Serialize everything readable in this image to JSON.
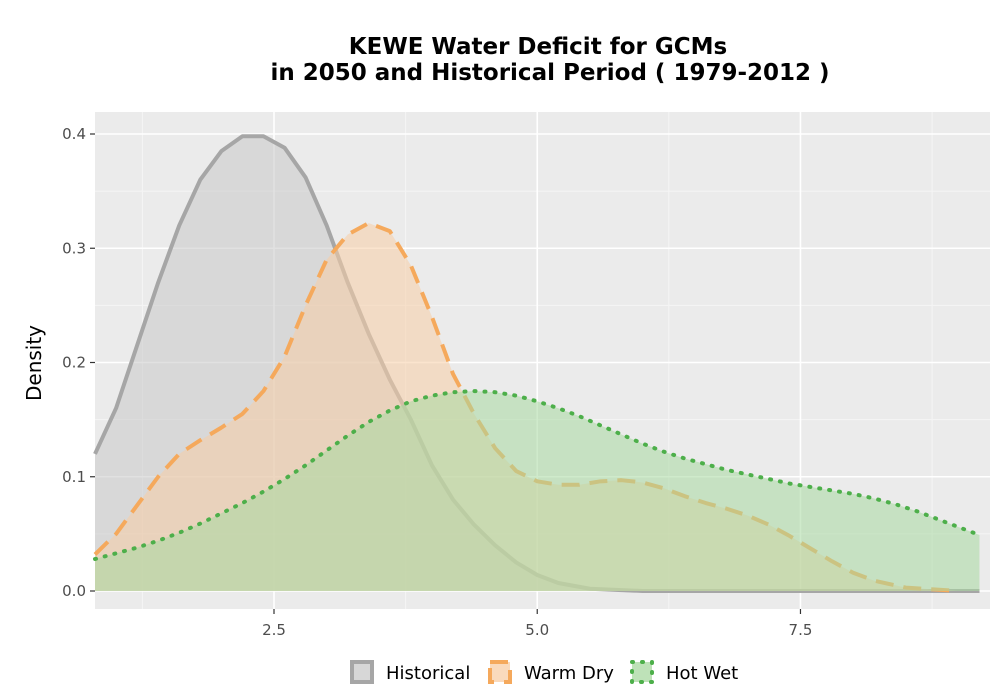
{
  "chart_data": {
    "type": "area",
    "title_lines": [
      "KEWE  Water Deficit for GCMs",
      "in 2050 and Historical Period ( 1979-2012 )"
    ],
    "xlabel": "",
    "ylabel": "Density",
    "xlim": [
      0.8,
      9.3
    ],
    "ylim": [
      0,
      0.4
    ],
    "x_ticks": [
      2.5,
      5.0,
      7.5
    ],
    "x_tick_labels": [
      "2.5",
      "5.0",
      "7.5"
    ],
    "y_ticks": [
      0.0,
      0.1,
      0.2,
      0.3,
      0.4
    ],
    "y_tick_labels": [
      "0.0",
      "0.1",
      "0.2",
      "0.3",
      "0.4"
    ],
    "grid": true,
    "legend_position": "bottom",
    "series": [
      {
        "name": "Historical",
        "line_color": "#a6a6a6",
        "fill_color": "#c9c9c9",
        "dash": "solid",
        "points": [
          [
            0.8,
            0.12
          ],
          [
            1.0,
            0.16
          ],
          [
            1.2,
            0.215
          ],
          [
            1.4,
            0.27
          ],
          [
            1.6,
            0.32
          ],
          [
            1.8,
            0.36
          ],
          [
            2.0,
            0.385
          ],
          [
            2.2,
            0.398
          ],
          [
            2.4,
            0.398
          ],
          [
            2.6,
            0.388
          ],
          [
            2.8,
            0.362
          ],
          [
            3.0,
            0.32
          ],
          [
            3.2,
            0.27
          ],
          [
            3.4,
            0.225
          ],
          [
            3.6,
            0.185
          ],
          [
            3.8,
            0.15
          ],
          [
            4.0,
            0.11
          ],
          [
            4.2,
            0.08
          ],
          [
            4.4,
            0.058
          ],
          [
            4.6,
            0.04
          ],
          [
            4.8,
            0.025
          ],
          [
            5.0,
            0.014
          ],
          [
            5.2,
            0.007
          ],
          [
            5.5,
            0.002
          ],
          [
            6.0,
            0.0
          ],
          [
            9.2,
            0.0
          ]
        ]
      },
      {
        "name": "Warm Dry",
        "line_color": "#f5a95c",
        "fill_color": "#f8cda5",
        "dash": "dashed",
        "points": [
          [
            0.8,
            0.032
          ],
          [
            1.0,
            0.05
          ],
          [
            1.2,
            0.075
          ],
          [
            1.4,
            0.1
          ],
          [
            1.6,
            0.12
          ],
          [
            1.8,
            0.132
          ],
          [
            2.0,
            0.143
          ],
          [
            2.2,
            0.155
          ],
          [
            2.4,
            0.175
          ],
          [
            2.6,
            0.205
          ],
          [
            2.8,
            0.25
          ],
          [
            3.0,
            0.29
          ],
          [
            3.2,
            0.312
          ],
          [
            3.4,
            0.322
          ],
          [
            3.6,
            0.315
          ],
          [
            3.8,
            0.285
          ],
          [
            4.0,
            0.24
          ],
          [
            4.2,
            0.19
          ],
          [
            4.4,
            0.155
          ],
          [
            4.6,
            0.125
          ],
          [
            4.8,
            0.105
          ],
          [
            5.0,
            0.096
          ],
          [
            5.2,
            0.093
          ],
          [
            5.4,
            0.093
          ],
          [
            5.6,
            0.096
          ],
          [
            5.8,
            0.097
          ],
          [
            6.0,
            0.095
          ],
          [
            6.2,
            0.09
          ],
          [
            6.4,
            0.083
          ],
          [
            6.6,
            0.077
          ],
          [
            6.8,
            0.072
          ],
          [
            7.0,
            0.066
          ],
          [
            7.2,
            0.058
          ],
          [
            7.4,
            0.048
          ],
          [
            7.6,
            0.037
          ],
          [
            7.8,
            0.026
          ],
          [
            8.0,
            0.016
          ],
          [
            8.2,
            0.009
          ],
          [
            8.5,
            0.003
          ],
          [
            9.0,
            0.0
          ]
        ]
      },
      {
        "name": "Hot Wet",
        "line_color": "#4daf4a",
        "fill_color": "#a8d8a0",
        "dash": "dotted",
        "points": [
          [
            0.8,
            0.028
          ],
          [
            1.0,
            0.033
          ],
          [
            1.2,
            0.038
          ],
          [
            1.4,
            0.044
          ],
          [
            1.6,
            0.051
          ],
          [
            1.8,
            0.059
          ],
          [
            2.0,
            0.068
          ],
          [
            2.2,
            0.077
          ],
          [
            2.4,
            0.087
          ],
          [
            2.6,
            0.098
          ],
          [
            2.8,
            0.11
          ],
          [
            3.0,
            0.123
          ],
          [
            3.2,
            0.136
          ],
          [
            3.4,
            0.148
          ],
          [
            3.6,
            0.158
          ],
          [
            3.8,
            0.166
          ],
          [
            4.0,
            0.171
          ],
          [
            4.2,
            0.174
          ],
          [
            4.4,
            0.175
          ],
          [
            4.6,
            0.174
          ],
          [
            4.8,
            0.171
          ],
          [
            5.0,
            0.166
          ],
          [
            5.2,
            0.16
          ],
          [
            5.4,
            0.153
          ],
          [
            5.6,
            0.145
          ],
          [
            5.8,
            0.137
          ],
          [
            6.0,
            0.129
          ],
          [
            6.2,
            0.122
          ],
          [
            6.4,
            0.116
          ],
          [
            6.6,
            0.111
          ],
          [
            6.8,
            0.106
          ],
          [
            7.0,
            0.102
          ],
          [
            7.2,
            0.098
          ],
          [
            7.4,
            0.094
          ],
          [
            7.6,
            0.091
          ],
          [
            7.8,
            0.088
          ],
          [
            8.0,
            0.085
          ],
          [
            8.2,
            0.081
          ],
          [
            8.4,
            0.076
          ],
          [
            8.6,
            0.07
          ],
          [
            8.8,
            0.063
          ],
          [
            9.0,
            0.056
          ],
          [
            9.2,
            0.049
          ]
        ]
      }
    ]
  }
}
